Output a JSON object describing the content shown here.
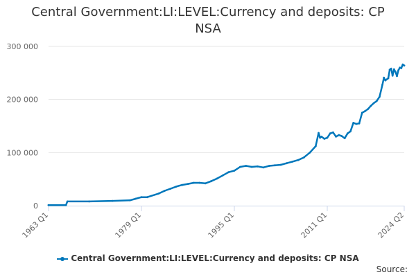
{
  "chart_data": {
    "type": "line",
    "title_lines": [
      "Central Government:LI:LEVEL:Currency and deposits: CP",
      "NSA"
    ],
    "ylim": [
      0,
      300000
    ],
    "yticks": [
      {
        "value": 0,
        "label": "0"
      },
      {
        "value": 100000,
        "label": "100 000"
      },
      {
        "value": 200000,
        "label": "200 000"
      },
      {
        "value": 300000,
        "label": "300 000"
      }
    ],
    "xlim": [
      1963.0,
      2024.25
    ],
    "xticks": [
      {
        "value": 1963.0,
        "label": "1963 Q1"
      },
      {
        "value": 1979.0,
        "label": "1979 Q1"
      },
      {
        "value": 1995.0,
        "label": "1995 Q1"
      },
      {
        "value": 2011.0,
        "label": "2011 Q1"
      },
      {
        "value": 2024.25,
        "label": "2024 Q2"
      }
    ],
    "series": [
      {
        "name": "Central Government:LI:LEVEL:Currency and deposits: CP NSA",
        "color": "#0077bb",
        "x": [
          1963.0,
          1966.0,
          1966.25,
          1970,
          1974,
          1977,
          1978,
          1979,
          1980,
          1982,
          1983,
          1984,
          1985,
          1986,
          1987,
          1988,
          1989,
          1990,
          1991,
          1992,
          1993,
          1994,
          1995,
          1996,
          1997,
          1998,
          1999,
          2000,
          2001,
          2002,
          2003,
          2004,
          2005,
          2006,
          2007,
          2008,
          2009,
          2009.5,
          2009.75,
          2010,
          2010.5,
          2011,
          2011.5,
          2012,
          2012.5,
          2013,
          2013.5,
          2014,
          2014.5,
          2015,
          2015.5,
          2016,
          2016.5,
          2017,
          2017.5,
          2018,
          2018.5,
          2019,
          2019.5,
          2020,
          2020.5,
          2020.75,
          2021,
          2021.5,
          2021.75,
          2022,
          2022.25,
          2022.5,
          2022.75,
          2023,
          2023.25,
          2023.5,
          2023.75,
          2024.0,
          2024.25
        ],
        "values": [
          1000,
          1000,
          8000,
          8000,
          9000,
          10000,
          13000,
          16000,
          16000,
          23000,
          28000,
          32000,
          36000,
          39000,
          41000,
          43000,
          43000,
          42000,
          46000,
          51000,
          57000,
          63000,
          66000,
          73000,
          75000,
          73000,
          74000,
          72000,
          75000,
          76000,
          77000,
          80000,
          83000,
          86000,
          91000,
          100000,
          112000,
          137000,
          128000,
          130000,
          126000,
          128000,
          136000,
          138000,
          130000,
          133000,
          131000,
          127000,
          136000,
          140000,
          156000,
          154000,
          155000,
          175000,
          178000,
          182000,
          188000,
          193000,
          197000,
          205000,
          228000,
          241000,
          236000,
          240000,
          256000,
          258000,
          245000,
          257000,
          252000,
          244000,
          255000,
          260000,
          259000,
          266000,
          264000
        ]
      }
    ]
  },
  "legend": {
    "label": "Central Government:LI:LEVEL:Currency and deposits: CP NSA"
  },
  "source": {
    "label": "Source:"
  }
}
